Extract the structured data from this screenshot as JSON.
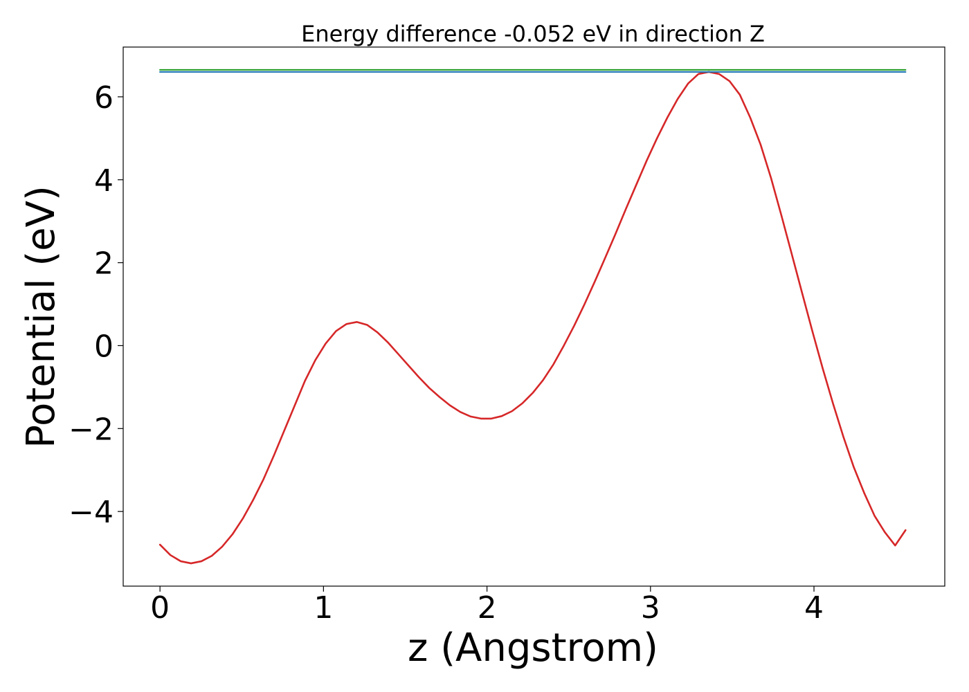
{
  "chart_data": {
    "type": "line",
    "title": "Energy difference -0.052 eV in direction Z",
    "xlabel": "z (Angstrom)",
    "ylabel": "Potential (eV)",
    "xlim": [
      -0.225,
      4.8
    ],
    "ylim": [
      -5.8,
      7.2
    ],
    "xticks": [
      0,
      1,
      2,
      3,
      4
    ],
    "xtick_labels": [
      "0",
      "1",
      "2",
      "3",
      "4"
    ],
    "yticks": [
      -4,
      -2,
      0,
      2,
      4,
      6
    ],
    "ytick_labels": [
      "−4",
      "−2",
      "0",
      "2",
      "4",
      "6"
    ],
    "grid": false,
    "series": [
      {
        "color": "#d62728",
        "x": [
          0.0,
          0.0633,
          0.1267,
          0.19,
          0.2533,
          0.3167,
          0.38,
          0.4433,
          0.5067,
          0.57,
          0.6333,
          0.6967,
          0.76,
          0.8233,
          0.8867,
          0.95,
          1.0133,
          1.0767,
          1.14,
          1.2033,
          1.2667,
          1.33,
          1.3933,
          1.4567,
          1.52,
          1.5833,
          1.6467,
          1.71,
          1.7733,
          1.8367,
          1.9,
          1.9633,
          2.0267,
          2.09,
          2.1533,
          2.2167,
          2.28,
          2.3433,
          2.4067,
          2.47,
          2.5333,
          2.5967,
          2.66,
          2.7233,
          2.7867,
          2.85,
          2.9133,
          2.9767,
          3.04,
          3.1033,
          3.1667,
          3.23,
          3.2933,
          3.3567,
          3.42,
          3.4833,
          3.5467,
          3.61,
          3.6733,
          3.7367,
          3.8,
          3.8633,
          3.9267,
          3.99,
          4.0533,
          4.1167,
          4.18,
          4.2433,
          4.3067,
          4.37,
          4.4333,
          4.4967,
          4.56
        ],
        "y": [
          -4.8,
          -5.05,
          -5.2,
          -5.25,
          -5.2,
          -5.07,
          -4.85,
          -4.55,
          -4.17,
          -3.72,
          -3.22,
          -2.65,
          -2.05,
          -1.45,
          -0.85,
          -0.35,
          0.05,
          0.35,
          0.52,
          0.57,
          0.5,
          0.32,
          0.08,
          -0.2,
          -0.48,
          -0.76,
          -1.02,
          -1.24,
          -1.44,
          -1.6,
          -1.71,
          -1.76,
          -1.76,
          -1.7,
          -1.58,
          -1.39,
          -1.14,
          -0.83,
          -0.45,
          0.0,
          0.48,
          1.0,
          1.55,
          2.12,
          2.7,
          3.3,
          3.88,
          4.46,
          5.0,
          5.5,
          5.95,
          6.32,
          6.55,
          6.6,
          6.55,
          6.38,
          6.05,
          5.5,
          4.85,
          4.05,
          3.15,
          2.22,
          1.28,
          0.35,
          -0.55,
          -1.4,
          -2.2,
          -2.93,
          -3.55,
          -4.1,
          -4.5,
          -4.82,
          -4.45
        ]
      },
      {
        "color": "#2ca02c",
        "x": [
          0.0,
          4.56
        ],
        "y": [
          6.65,
          6.65
        ]
      },
      {
        "color": "#1f77b4",
        "x": [
          0.0,
          4.56
        ],
        "y": [
          6.6,
          6.6
        ]
      }
    ]
  }
}
